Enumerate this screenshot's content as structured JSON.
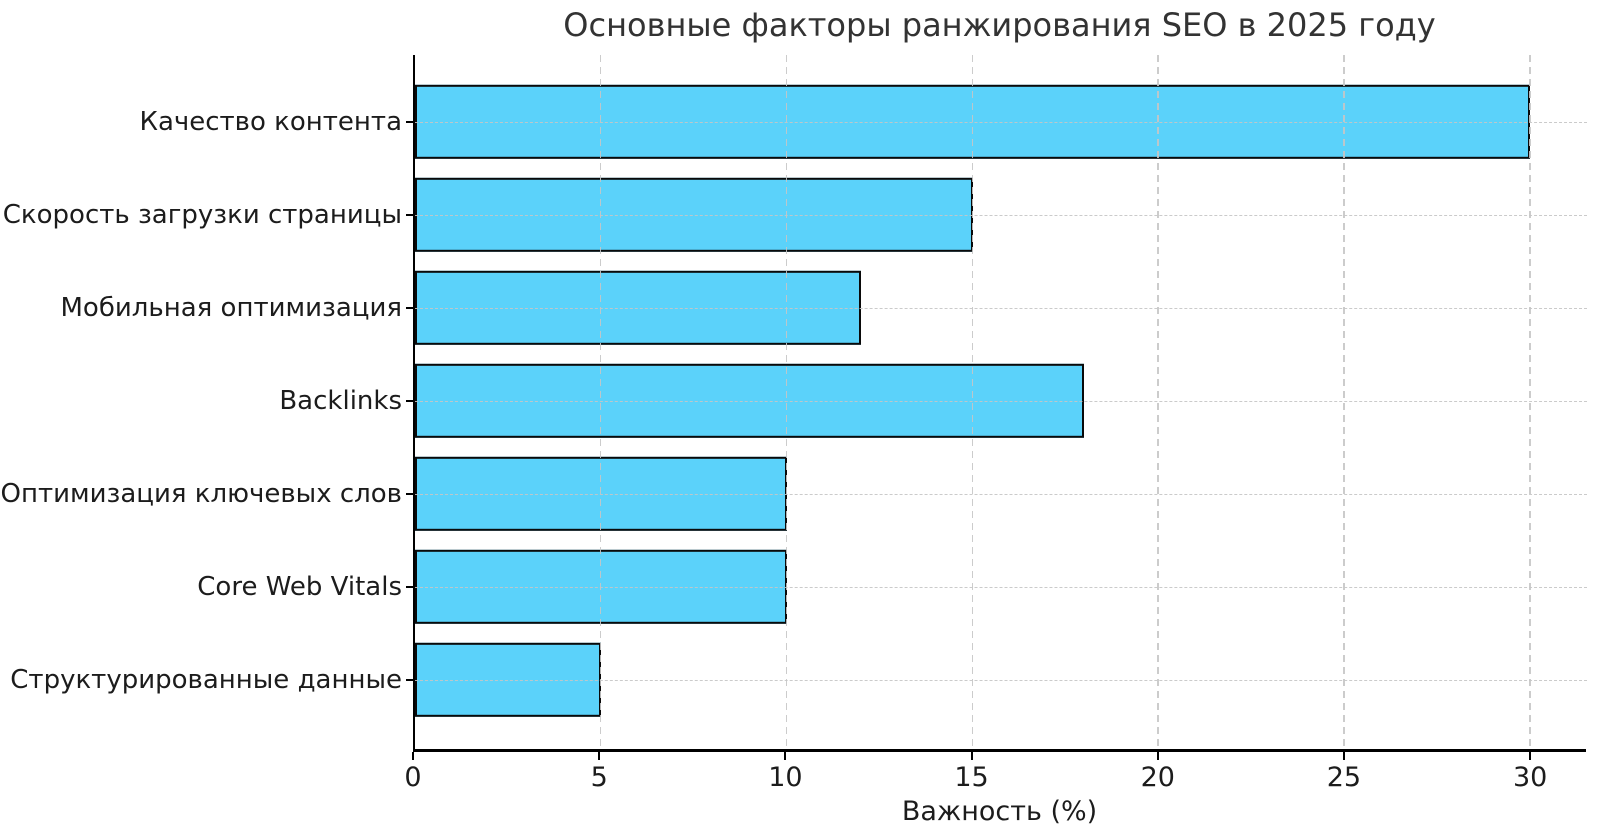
{
  "chart_data": {
    "type": "bar",
    "orientation": "horizontal",
    "title": "Основные факторы ранжирования SEO в 2025 году",
    "xlabel": "Важность (%)",
    "ylabel": "",
    "categories": [
      "Качество контента",
      "Скорость загрузки страницы",
      "Мобильная оптимизация",
      "Backlinks",
      "Оптимизация ключевых слов",
      "Core Web Vitals",
      "Структурированные данные"
    ],
    "values": [
      30,
      15,
      12,
      18,
      10,
      10,
      5
    ],
    "xticks": [
      0,
      5,
      10,
      15,
      20,
      25,
      30
    ],
    "xlim": [
      0,
      31.5
    ],
    "grid": true,
    "grid_style": "dashed",
    "grid_on_top": true,
    "legend": "none",
    "bar_color": "#5BD2FA",
    "bar_edge_color": "#0a0a0a",
    "grid_color": "#c6c6c6",
    "axis_color": "#000000",
    "text_color": "#1c1c1c",
    "title_color": "#333333",
    "background_color": "#ffffff"
  }
}
